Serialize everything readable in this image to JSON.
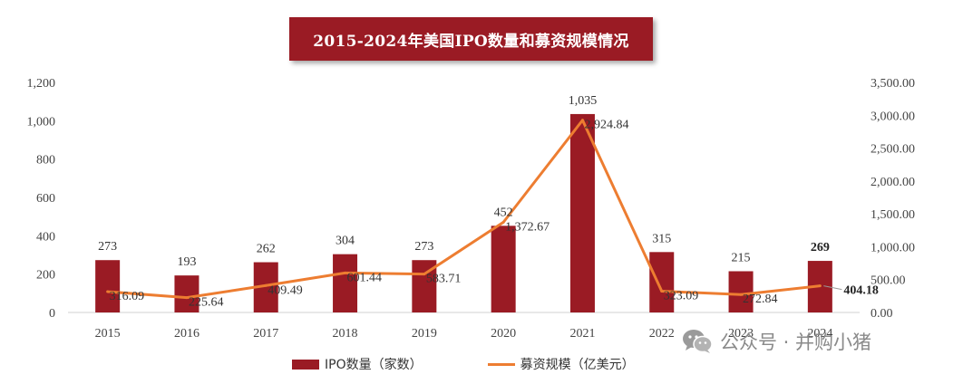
{
  "title": "2015-2024年美国IPO数量和募资规模情况",
  "watermark": {
    "icon": "wechat-icon",
    "text": "公众号 · 并购小猪"
  },
  "colors": {
    "bar": "#9a1b24",
    "line": "#ed7d31",
    "title_bg": "#9a1b24"
  },
  "chart_data": {
    "type": "bar+line",
    "categories": [
      "2015",
      "2016",
      "2017",
      "2018",
      "2019",
      "2020",
      "2021",
      "2022",
      "2023",
      "2024"
    ],
    "series": [
      {
        "name": "IPO数量（家数）",
        "type": "bar",
        "axis": "left",
        "values": [
          273,
          193,
          262,
          304,
          273,
          452,
          1035,
          315,
          215,
          269
        ],
        "labels": [
          "273",
          "193",
          "262",
          "304",
          "273",
          "452",
          "1,035",
          "315",
          "215",
          "269"
        ]
      },
      {
        "name": "募资规模（亿美元）",
        "type": "line",
        "axis": "right",
        "values": [
          316.09,
          225.64,
          409.49,
          601.44,
          583.71,
          1372.67,
          2924.84,
          323.09,
          272.84,
          404.18
        ],
        "labels": [
          "316.09",
          "225.64",
          "409.49",
          "601.44",
          "583.71",
          "1,372.67",
          "2,924.84",
          "323.09",
          "272.84",
          "404.18"
        ]
      }
    ],
    "y_left": {
      "min": 0,
      "max": 1200,
      "ticks": [
        "0",
        "200",
        "400",
        "600",
        "800",
        "1,000",
        "1,200"
      ]
    },
    "y_right": {
      "min": 0,
      "max": 3500,
      "ticks": [
        "0.00",
        "500.00",
        "1,000.00",
        "1,500.00",
        "2,000.00",
        "2,500.00",
        "3,000.00",
        "3,500.00"
      ]
    },
    "legend": {
      "position": "bottom",
      "items": [
        "IPO数量（家数）",
        "募资规模（亿美元）"
      ]
    },
    "grid": false
  }
}
